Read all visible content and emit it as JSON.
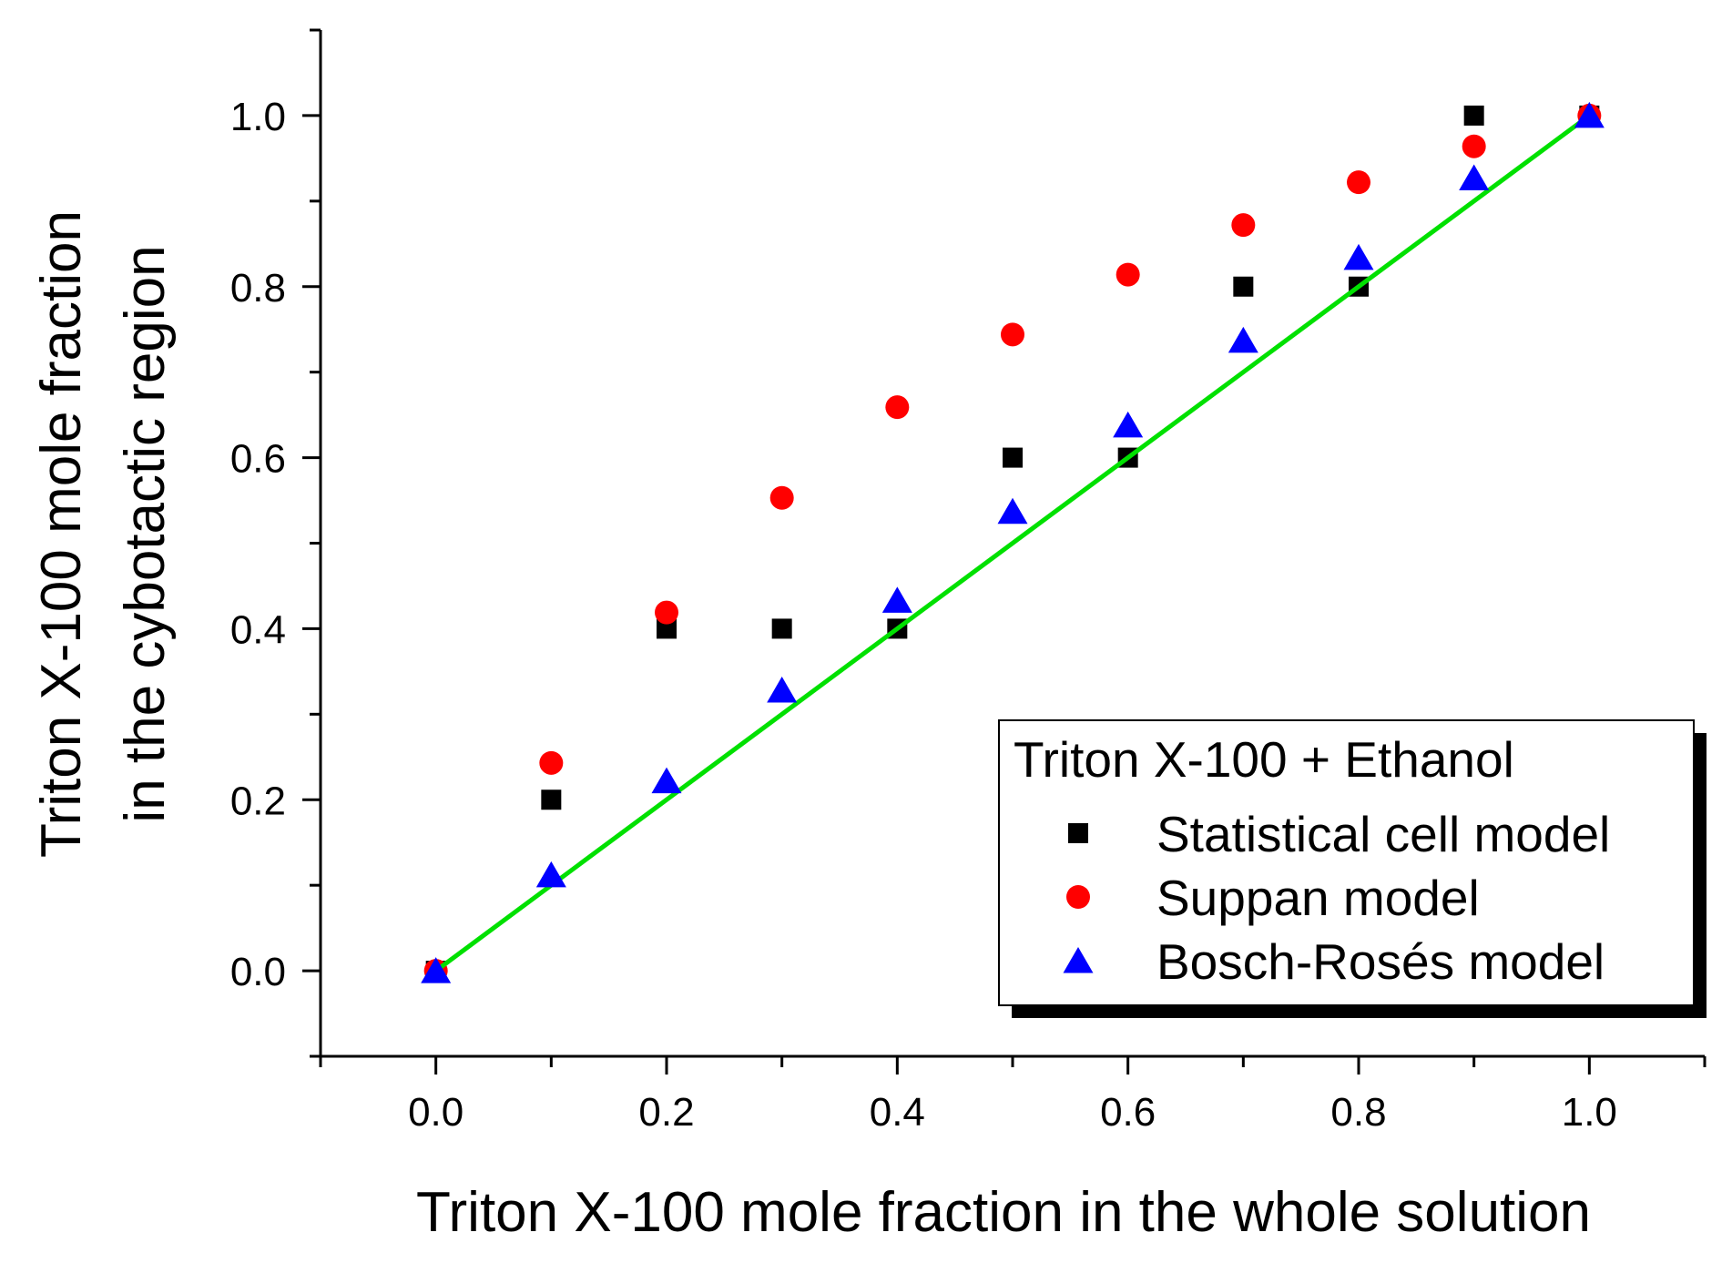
{
  "chart_data": {
    "type": "scatter",
    "title": "",
    "xlabel": "Triton X-100 mole fraction in the whole solution",
    "ylabel_lines": [
      "Triton X-100 mole fraction",
      "in the cybotactic region"
    ],
    "xlim": [
      -0.1,
      1.1
    ],
    "ylim": [
      -0.1,
      1.1
    ],
    "xticks": [
      "0.0",
      "0.2",
      "0.4",
      "0.6",
      "0.8",
      "1.0"
    ],
    "yticks": [
      "0.0",
      "0.2",
      "0.4",
      "0.6",
      "0.8",
      "1.0"
    ],
    "grid": false,
    "legend": {
      "title": "Triton X-100 + Ethanol",
      "placement": "bottom-right"
    },
    "series": [
      {
        "name": "Statistical cell model",
        "marker": "square",
        "color": "#000000",
        "x": [
          0.0,
          0.1,
          0.2,
          0.3,
          0.4,
          0.5,
          0.6,
          0.7,
          0.8,
          0.9,
          1.0
        ],
        "y": [
          0.0,
          0.2,
          0.4,
          0.4,
          0.4,
          0.6,
          0.6,
          0.8,
          0.8,
          1.0,
          1.0
        ]
      },
      {
        "name": "Suppan model",
        "marker": "circle",
        "color": "#ff0000",
        "x": [
          0.0,
          0.1,
          0.2,
          0.3,
          0.4,
          0.5,
          0.6,
          0.7,
          0.8,
          0.9,
          1.0
        ],
        "y": [
          0.0,
          0.243,
          0.419,
          0.553,
          0.659,
          0.744,
          0.814,
          0.872,
          0.922,
          0.964,
          1.0
        ]
      },
      {
        "name": "Bosch-Rosés model",
        "marker": "triangle",
        "color": "#0000ff",
        "x": [
          0.0,
          0.1,
          0.2,
          0.3,
          0.4,
          0.5,
          0.6,
          0.7,
          0.8,
          0.9,
          1.0
        ],
        "y": [
          0.0,
          0.112,
          0.222,
          0.328,
          0.433,
          0.537,
          0.638,
          0.737,
          0.834,
          0.927,
          1.0
        ]
      }
    ],
    "reference_line": {
      "color": "#00e000",
      "x": [
        0.0,
        1.0
      ],
      "y": [
        0.0,
        1.0
      ]
    }
  }
}
